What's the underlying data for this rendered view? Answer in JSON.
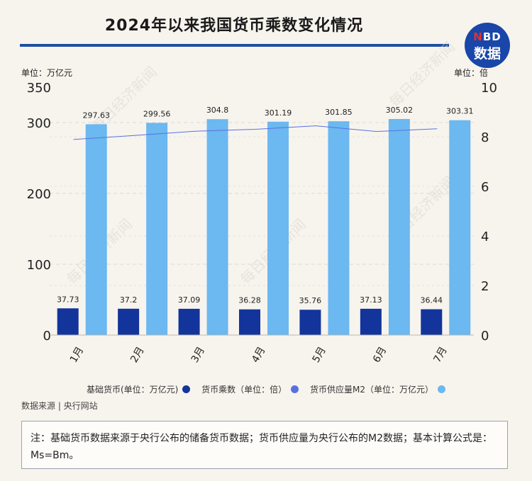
{
  "header": {
    "title": "2024年以来我国货币乘数变化情况",
    "logo_line1_red": "N",
    "logo_line1_rest": "BD",
    "logo_line2": "数据",
    "left_unit": "单位：万亿元",
    "right_unit": "单位：倍"
  },
  "watermark_text": "每日经济新闻",
  "chart_data": {
    "type": "bar",
    "title": "2024年以来我国货币乘数变化情况",
    "categories": [
      "1月",
      "2月",
      "3月",
      "4月",
      "5月",
      "6月",
      "7月"
    ],
    "series": [
      {
        "name": "基础货币(单位：万亿元)",
        "type": "bar",
        "axis": "left",
        "color": "#13349a",
        "values": [
          37.73,
          37.2,
          37.09,
          36.28,
          35.76,
          37.13,
          36.44
        ],
        "labels": [
          "37.73",
          "37.2",
          "37.09",
          "36.28",
          "35.76",
          "37.13",
          "36.44"
        ]
      },
      {
        "name": "货币乘数（单位：倍）",
        "type": "line",
        "axis": "right",
        "color": "#5a70e0",
        "values": [
          7.89,
          8.05,
          8.22,
          8.3,
          8.44,
          8.21,
          8.32
        ]
      },
      {
        "name": "货币供应量M2（单位：万亿元）",
        "type": "bar",
        "axis": "left",
        "color": "#6cb8f0",
        "values": [
          297.63,
          299.56,
          304.8,
          301.19,
          301.85,
          305.02,
          303.31
        ],
        "labels": [
          "297.63",
          "299.56",
          "304.8",
          "301.19",
          "301.85",
          "305.02",
          "303.31"
        ]
      }
    ],
    "left_axis": {
      "unit": "单位：万亿元",
      "ylim": [
        0,
        350
      ],
      "tick_values": [
        0,
        100,
        200,
        300,
        350
      ],
      "tick_labels": [
        "0",
        "100",
        "200",
        "300",
        "350"
      ]
    },
    "right_axis": {
      "unit": "单位：倍",
      "ylim": [
        0,
        10
      ],
      "tick_values": [
        0,
        2,
        4,
        6,
        8,
        10
      ],
      "tick_labels": [
        "0",
        "2",
        "4",
        "6",
        "8",
        "10"
      ]
    },
    "grid": true,
    "legend_position": "bottom"
  },
  "footer": {
    "source": "数据来源 | 央行网站",
    "note": "注：基础货币数据来源于央行公布的储备货币数据；货币供应量为央行公布的M2数据；基本计算公式是：Ms=Bm。"
  },
  "colors": {
    "background": "#f7f4ee",
    "accent": "#1f4fa3",
    "base_money": "#13349a",
    "multiplier": "#5a70e0",
    "m2": "#6cb8f0"
  }
}
